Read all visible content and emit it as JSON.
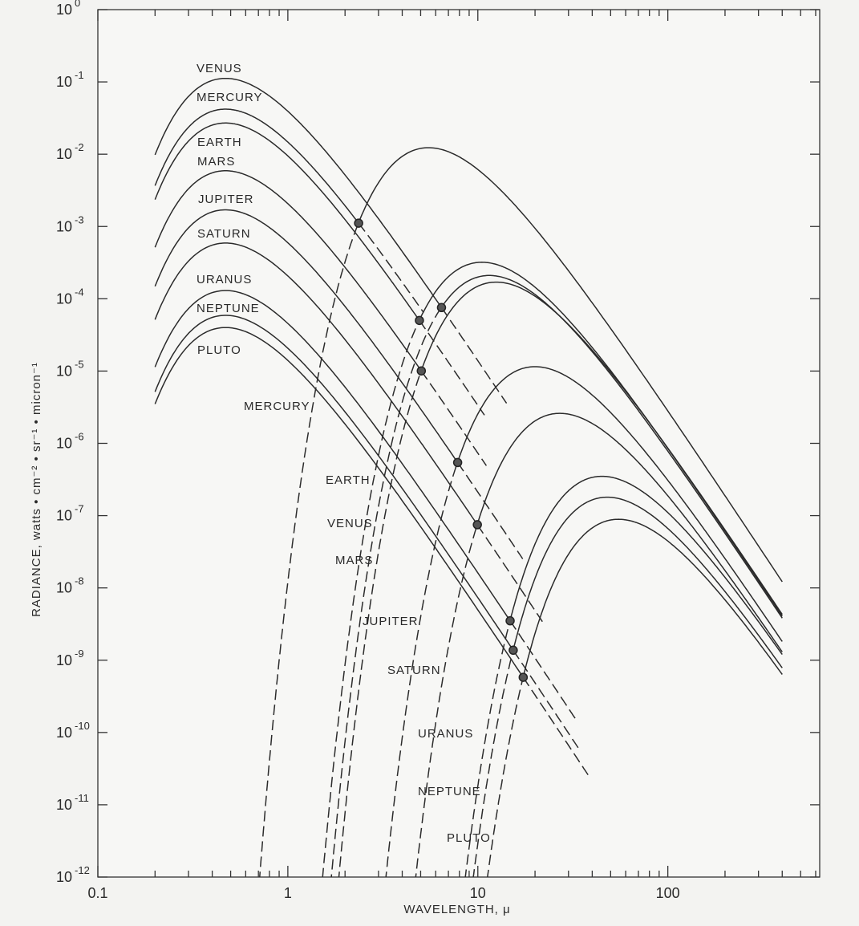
{
  "chart_data": {
    "type": "line",
    "xlabel": "WAVELENGTH, μ",
    "ylabel": "RADIANCE, watts • cm⁻² • sr⁻¹ • micron⁻¹",
    "x_scale": "log",
    "y_scale": "log",
    "xlim": [
      0.1,
      630
    ],
    "ylim": [
      1e-12,
      1
    ],
    "grid": false,
    "x_ticks": [
      {
        "value": 0.1,
        "label": "0.1"
      },
      {
        "value": 1,
        "label": "1"
      },
      {
        "value": 10,
        "label": "10"
      },
      {
        "value": 100,
        "label": "100"
      }
    ],
    "y_ticks": [
      {
        "value": 0,
        "base": "10",
        "exp": "0"
      },
      {
        "value": -1,
        "base": "10",
        "exp": "-1"
      },
      {
        "value": -2,
        "base": "10",
        "exp": "-2"
      },
      {
        "value": -3,
        "base": "10",
        "exp": "-3"
      },
      {
        "value": -4,
        "base": "10",
        "exp": "-4"
      },
      {
        "value": -5,
        "base": "10",
        "exp": "-5"
      },
      {
        "value": -6,
        "base": "10",
        "exp": "-6"
      },
      {
        "value": -7,
        "base": "10",
        "exp": "-7"
      },
      {
        "value": -8,
        "base": "10",
        "exp": "-8"
      },
      {
        "value": -9,
        "base": "10",
        "exp": "-9"
      },
      {
        "value": -10,
        "base": "10",
        "exp": "-10"
      },
      {
        "value": -11,
        "base": "10",
        "exp": "-11"
      },
      {
        "value": -12,
        "base": "10",
        "exp": "-12"
      }
    ],
    "series": [
      {
        "name": "VENUS",
        "reflected_peak": {
          "wavelength": 0.47,
          "radiance": 0.112
        },
        "thermal_peak": {
          "wavelength": 11.5,
          "radiance": 0.00021
        }
      },
      {
        "name": "MERCURY",
        "reflected_peak": {
          "wavelength": 0.47,
          "radiance": 0.042
        },
        "thermal_peak": {
          "wavelength": 5.5,
          "radiance": 0.0123
        }
      },
      {
        "name": "EARTH",
        "reflected_peak": {
          "wavelength": 0.47,
          "radiance": 0.027
        },
        "thermal_peak": {
          "wavelength": 10.5,
          "radiance": 0.00032
        }
      },
      {
        "name": "MARS",
        "reflected_peak": {
          "wavelength": 0.47,
          "radiance": 0.0059
        },
        "thermal_peak": {
          "wavelength": 12.5,
          "radiance": 0.00017
        }
      },
      {
        "name": "JUPITER",
        "reflected_peak": {
          "wavelength": 0.47,
          "radiance": 0.0017
        },
        "thermal_peak": {
          "wavelength": 20,
          "radiance": 1.15e-05
        }
      },
      {
        "name": "SATURN",
        "reflected_peak": {
          "wavelength": 0.47,
          "radiance": 0.00059
        },
        "thermal_peak": {
          "wavelength": 27,
          "radiance": 2.6e-06
        }
      },
      {
        "name": "URANUS",
        "reflected_peak": {
          "wavelength": 0.47,
          "radiance": 0.00013
        },
        "thermal_peak": {
          "wavelength": 45,
          "radiance": 3.5e-07
        }
      },
      {
        "name": "NEPTUNE",
        "reflected_peak": {
          "wavelength": 0.47,
          "radiance": 5.9e-05
        },
        "thermal_peak": {
          "wavelength": 48,
          "radiance": 1.8e-07
        }
      },
      {
        "name": "PLUTO",
        "reflected_peak": {
          "wavelength": 0.47,
          "radiance": 4e-05
        },
        "thermal_peak": {
          "wavelength": 55,
          "radiance": 8.9e-08
        }
      }
    ]
  }
}
